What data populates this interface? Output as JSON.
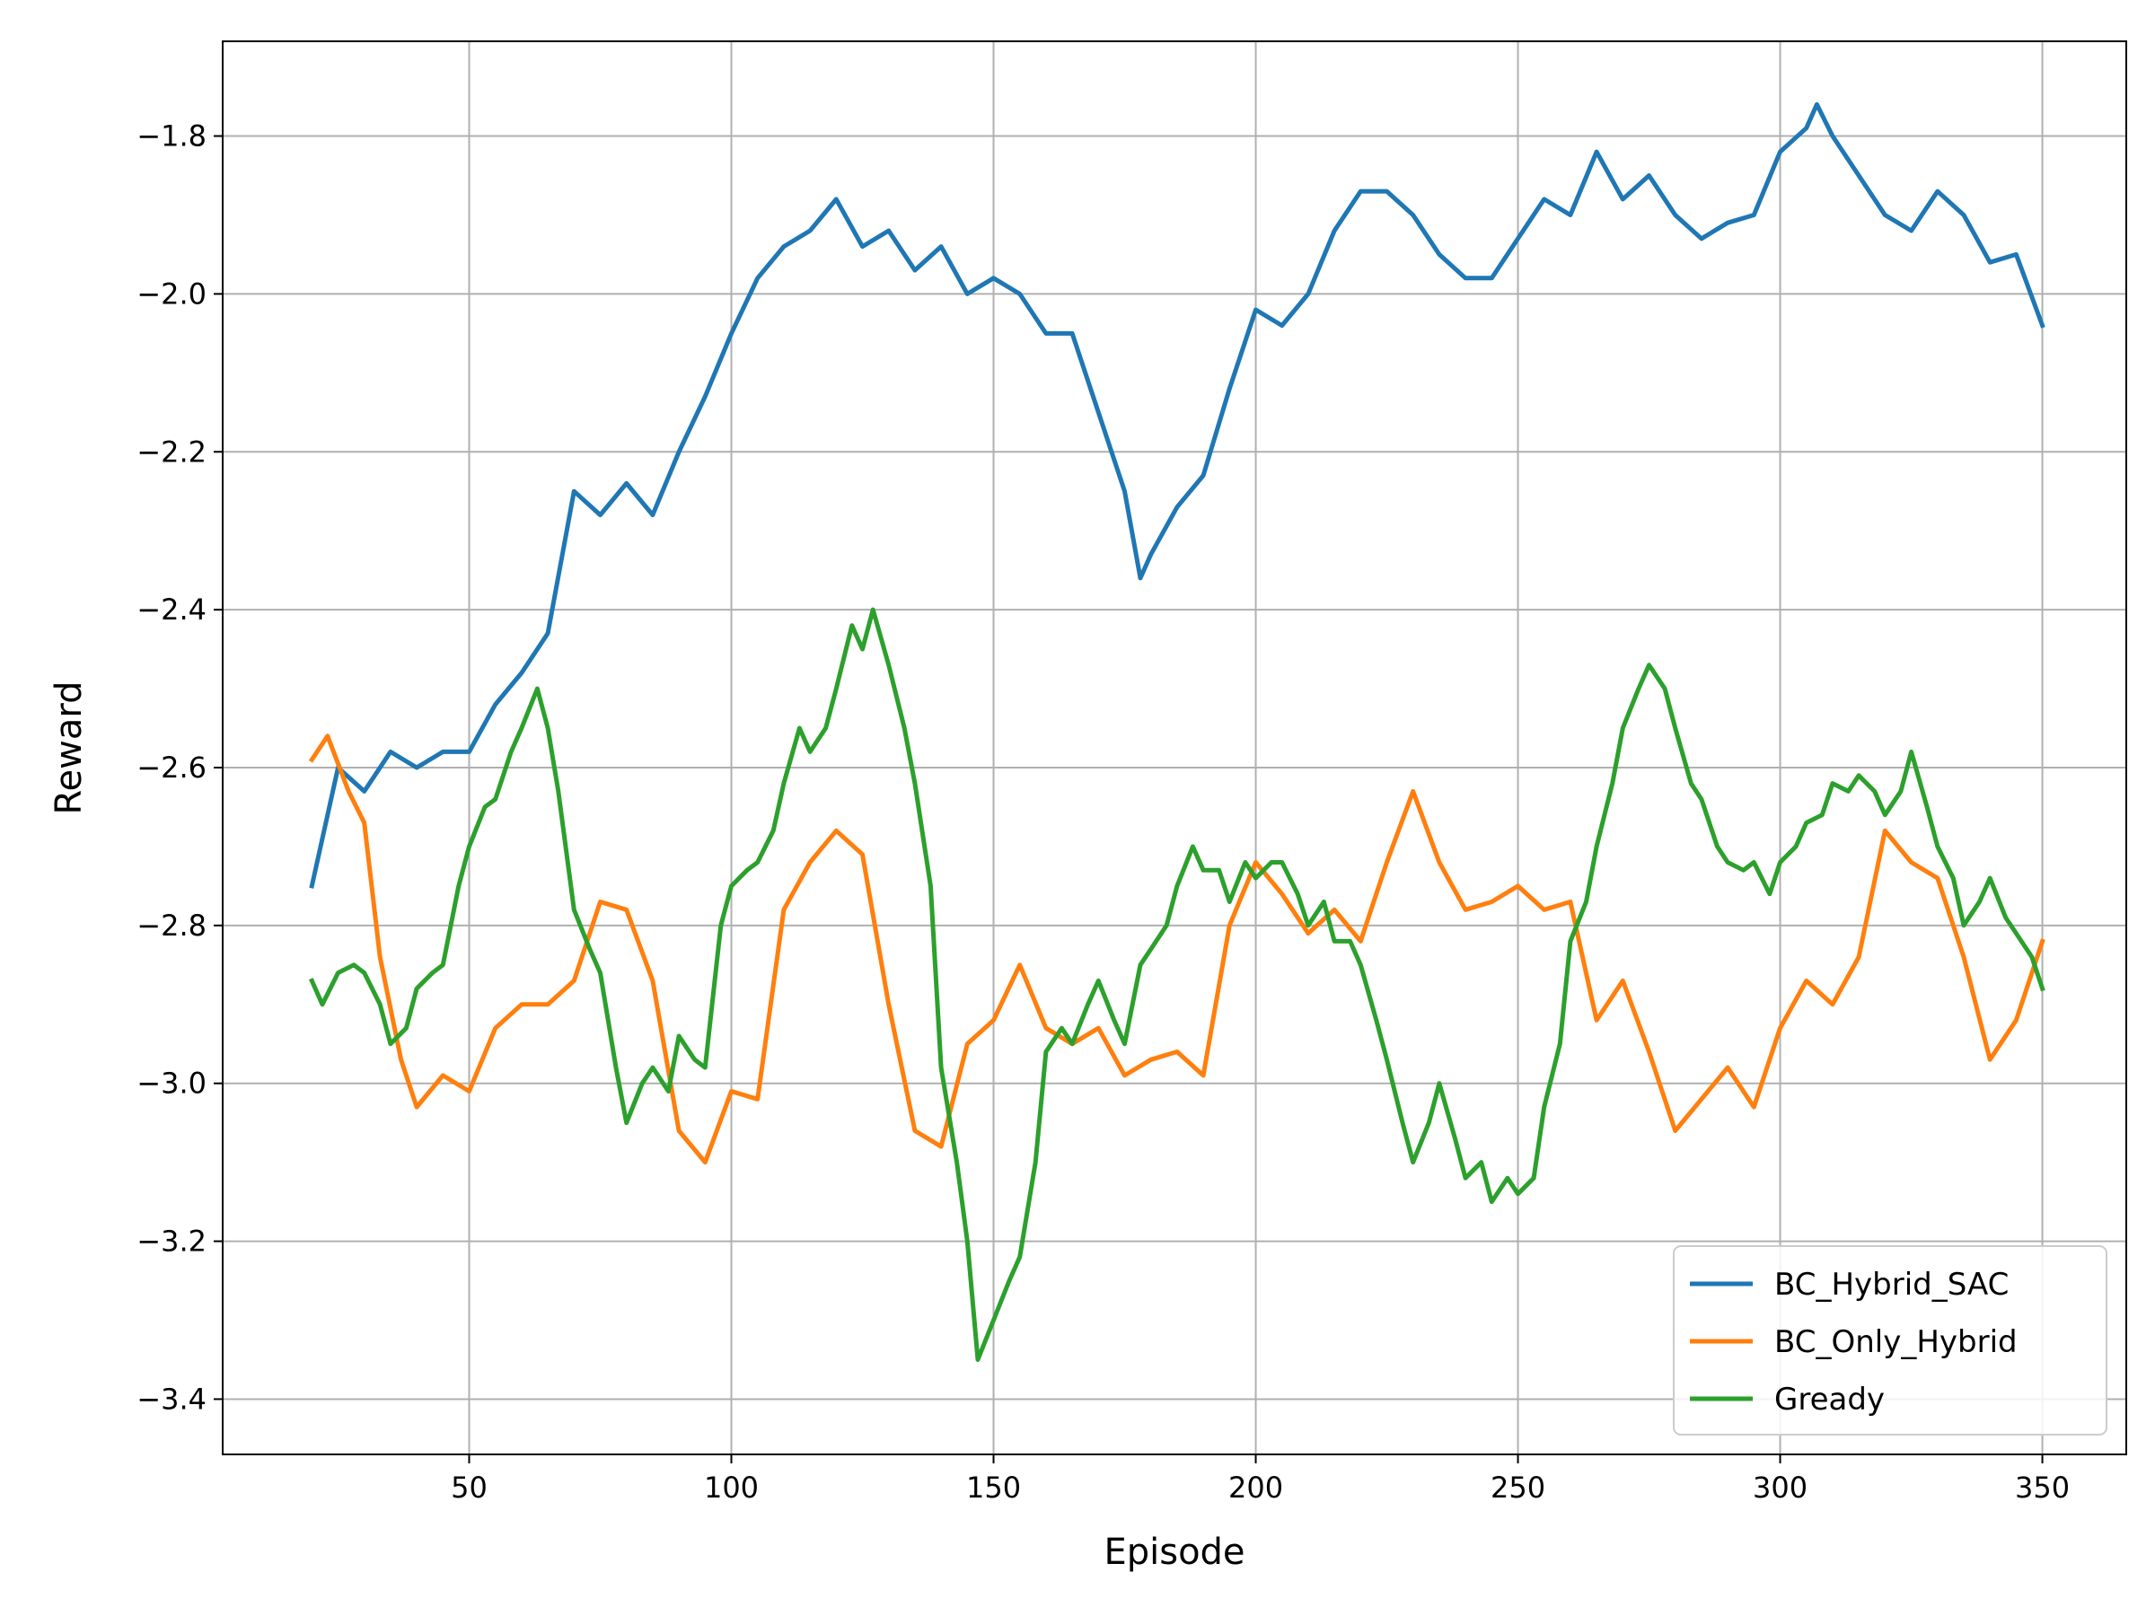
{
  "chart_data": {
    "type": "line",
    "xlabel": "Episode",
    "ylabel": "Reward",
    "xlim": [
      3,
      366
    ],
    "ylim": [
      -3.47,
      -1.68
    ],
    "x_ticks": [
      50,
      100,
      150,
      200,
      250,
      300,
      350
    ],
    "x_tick_labels": [
      "50",
      "100",
      "150",
      "200",
      "250",
      "300",
      "350"
    ],
    "y_ticks": [
      -3.4,
      -3.2,
      -3.0,
      -2.8,
      -2.6,
      -2.4,
      -2.2,
      -2.0,
      -1.8
    ],
    "y_tick_labels": [
      "−3.4",
      "−3.2",
      "−3.0",
      "−2.8",
      "−2.6",
      "−2.4",
      "−2.2",
      "−2.0",
      "−1.8"
    ],
    "grid": true,
    "legend_position": "bottom-right",
    "series": [
      {
        "name": "BC_Hybrid_SAC",
        "color": "#1f77b4",
        "x": [
          20,
          25,
          30,
          35,
          40,
          45,
          50,
          55,
          60,
          65,
          70,
          75,
          80,
          85,
          90,
          95,
          100,
          105,
          110,
          115,
          120,
          125,
          130,
          135,
          140,
          145,
          150,
          155,
          160,
          165,
          170,
          175,
          178,
          180,
          185,
          190,
          195,
          200,
          205,
          210,
          215,
          220,
          225,
          230,
          235,
          240,
          245,
          250,
          255,
          260,
          265,
          270,
          275,
          280,
          285,
          290,
          295,
          300,
          305,
          307,
          310,
          315,
          320,
          325,
          330,
          335,
          340,
          345,
          350
        ],
        "values": [
          -2.75,
          -2.6,
          -2.63,
          -2.58,
          -2.6,
          -2.58,
          -2.58,
          -2.52,
          -2.48,
          -2.43,
          -2.25,
          -2.28,
          -2.24,
          -2.28,
          -2.2,
          -2.13,
          -2.05,
          -1.98,
          -1.94,
          -1.92,
          -1.88,
          -1.94,
          -1.92,
          -1.97,
          -1.94,
          -2.0,
          -1.98,
          -2.0,
          -2.05,
          -2.05,
          -2.15,
          -2.25,
          -2.36,
          -2.33,
          -2.27,
          -2.23,
          -2.12,
          -2.02,
          -2.04,
          -2.0,
          -1.92,
          -1.87,
          -1.87,
          -1.9,
          -1.95,
          -1.98,
          -1.98,
          -1.93,
          -1.88,
          -1.9,
          -1.82,
          -1.88,
          -1.85,
          -1.9,
          -1.93,
          -1.91,
          -1.9,
          -1.82,
          -1.79,
          -1.76,
          -1.8,
          -1.85,
          -1.9,
          -1.92,
          -1.87,
          -1.9,
          -1.96,
          -1.95,
          -2.04
        ]
      },
      {
        "name": "BC_Only_Hybrid",
        "color": "#ff7f0e",
        "x": [
          20,
          23,
          27,
          30,
          33,
          37,
          40,
          45,
          50,
          55,
          60,
          65,
          70,
          75,
          80,
          85,
          90,
          95,
          100,
          105,
          110,
          115,
          120,
          125,
          130,
          135,
          140,
          145,
          150,
          155,
          160,
          165,
          170,
          175,
          180,
          185,
          190,
          195,
          200,
          205,
          210,
          215,
          220,
          225,
          230,
          235,
          240,
          245,
          250,
          255,
          260,
          265,
          270,
          275,
          280,
          285,
          290,
          295,
          300,
          305,
          310,
          315,
          320,
          325,
          330,
          335,
          340,
          345,
          350
        ],
        "values": [
          -2.59,
          -2.56,
          -2.63,
          -2.67,
          -2.84,
          -2.97,
          -3.03,
          -2.99,
          -3.01,
          -2.93,
          -2.9,
          -2.9,
          -2.87,
          -2.77,
          -2.78,
          -2.87,
          -3.06,
          -3.1,
          -3.01,
          -3.02,
          -2.78,
          -2.72,
          -2.68,
          -2.71,
          -2.9,
          -3.06,
          -3.08,
          -2.95,
          -2.92,
          -2.85,
          -2.93,
          -2.95,
          -2.93,
          -2.99,
          -2.97,
          -2.96,
          -2.99,
          -2.8,
          -2.72,
          -2.76,
          -2.81,
          -2.78,
          -2.82,
          -2.72,
          -2.63,
          -2.72,
          -2.78,
          -2.77,
          -2.75,
          -2.78,
          -2.77,
          -2.92,
          -2.87,
          -2.96,
          -3.06,
          -3.02,
          -2.98,
          -3.03,
          -2.93,
          -2.87,
          -2.9,
          -2.84,
          -2.68,
          -2.72,
          -2.74,
          -2.84,
          -2.97,
          -2.92,
          -2.82
        ]
      },
      {
        "name": "Gready",
        "color": "#2ca02c",
        "x": [
          20,
          22,
          25,
          28,
          30,
          33,
          35,
          38,
          40,
          43,
          45,
          48,
          50,
          53,
          55,
          58,
          60,
          63,
          65,
          67,
          70,
          73,
          75,
          78,
          80,
          83,
          85,
          88,
          90,
          93,
          95,
          98,
          100,
          103,
          105,
          108,
          110,
          113,
          115,
          118,
          120,
          123,
          125,
          127,
          130,
          133,
          135,
          138,
          140,
          143,
          145,
          147,
          150,
          153,
          155,
          158,
          160,
          163,
          165,
          168,
          170,
          173,
          175,
          178,
          180,
          183,
          185,
          188,
          190,
          193,
          195,
          198,
          200,
          203,
          205,
          208,
          210,
          213,
          215,
          218,
          220,
          223,
          225,
          228,
          230,
          233,
          235,
          238,
          240,
          243,
          245,
          248,
          250,
          253,
          255,
          258,
          260,
          263,
          265,
          268,
          270,
          273,
          275,
          278,
          280,
          283,
          285,
          288,
          290,
          293,
          295,
          298,
          300,
          303,
          305,
          308,
          310,
          313,
          315,
          318,
          320,
          323,
          325,
          328,
          330,
          333,
          335,
          338,
          340,
          343,
          345,
          348,
          350
        ],
        "values": [
          -2.87,
          -2.9,
          -2.86,
          -2.85,
          -2.86,
          -2.9,
          -2.95,
          -2.93,
          -2.88,
          -2.86,
          -2.85,
          -2.75,
          -2.7,
          -2.65,
          -2.64,
          -2.58,
          -2.55,
          -2.5,
          -2.55,
          -2.63,
          -2.78,
          -2.83,
          -2.86,
          -2.98,
          -3.05,
          -3.0,
          -2.98,
          -3.01,
          -2.94,
          -2.97,
          -2.98,
          -2.8,
          -2.75,
          -2.73,
          -2.72,
          -2.68,
          -2.62,
          -2.55,
          -2.58,
          -2.55,
          -2.5,
          -2.42,
          -2.45,
          -2.4,
          -2.47,
          -2.55,
          -2.62,
          -2.75,
          -2.98,
          -3.1,
          -3.2,
          -3.35,
          -3.3,
          -3.25,
          -3.22,
          -3.1,
          -2.96,
          -2.93,
          -2.95,
          -2.9,
          -2.87,
          -2.92,
          -2.95,
          -2.85,
          -2.83,
          -2.8,
          -2.75,
          -2.7,
          -2.73,
          -2.73,
          -2.77,
          -2.72,
          -2.74,
          -2.72,
          -2.72,
          -2.76,
          -2.8,
          -2.77,
          -2.82,
          -2.82,
          -2.85,
          -2.92,
          -2.97,
          -3.05,
          -3.1,
          -3.05,
          -3.0,
          -3.07,
          -3.12,
          -3.1,
          -3.15,
          -3.12,
          -3.14,
          -3.12,
          -3.03,
          -2.95,
          -2.82,
          -2.77,
          -2.7,
          -2.62,
          -2.55,
          -2.5,
          -2.47,
          -2.5,
          -2.55,
          -2.62,
          -2.64,
          -2.7,
          -2.72,
          -2.73,
          -2.72,
          -2.76,
          -2.72,
          -2.7,
          -2.67,
          -2.66,
          -2.62,
          -2.63,
          -2.61,
          -2.63,
          -2.66,
          -2.63,
          -2.58,
          -2.65,
          -2.7,
          -2.74,
          -2.8,
          -2.77,
          -2.74,
          -2.79,
          -2.81,
          -2.84,
          -2.88
        ]
      }
    ]
  }
}
